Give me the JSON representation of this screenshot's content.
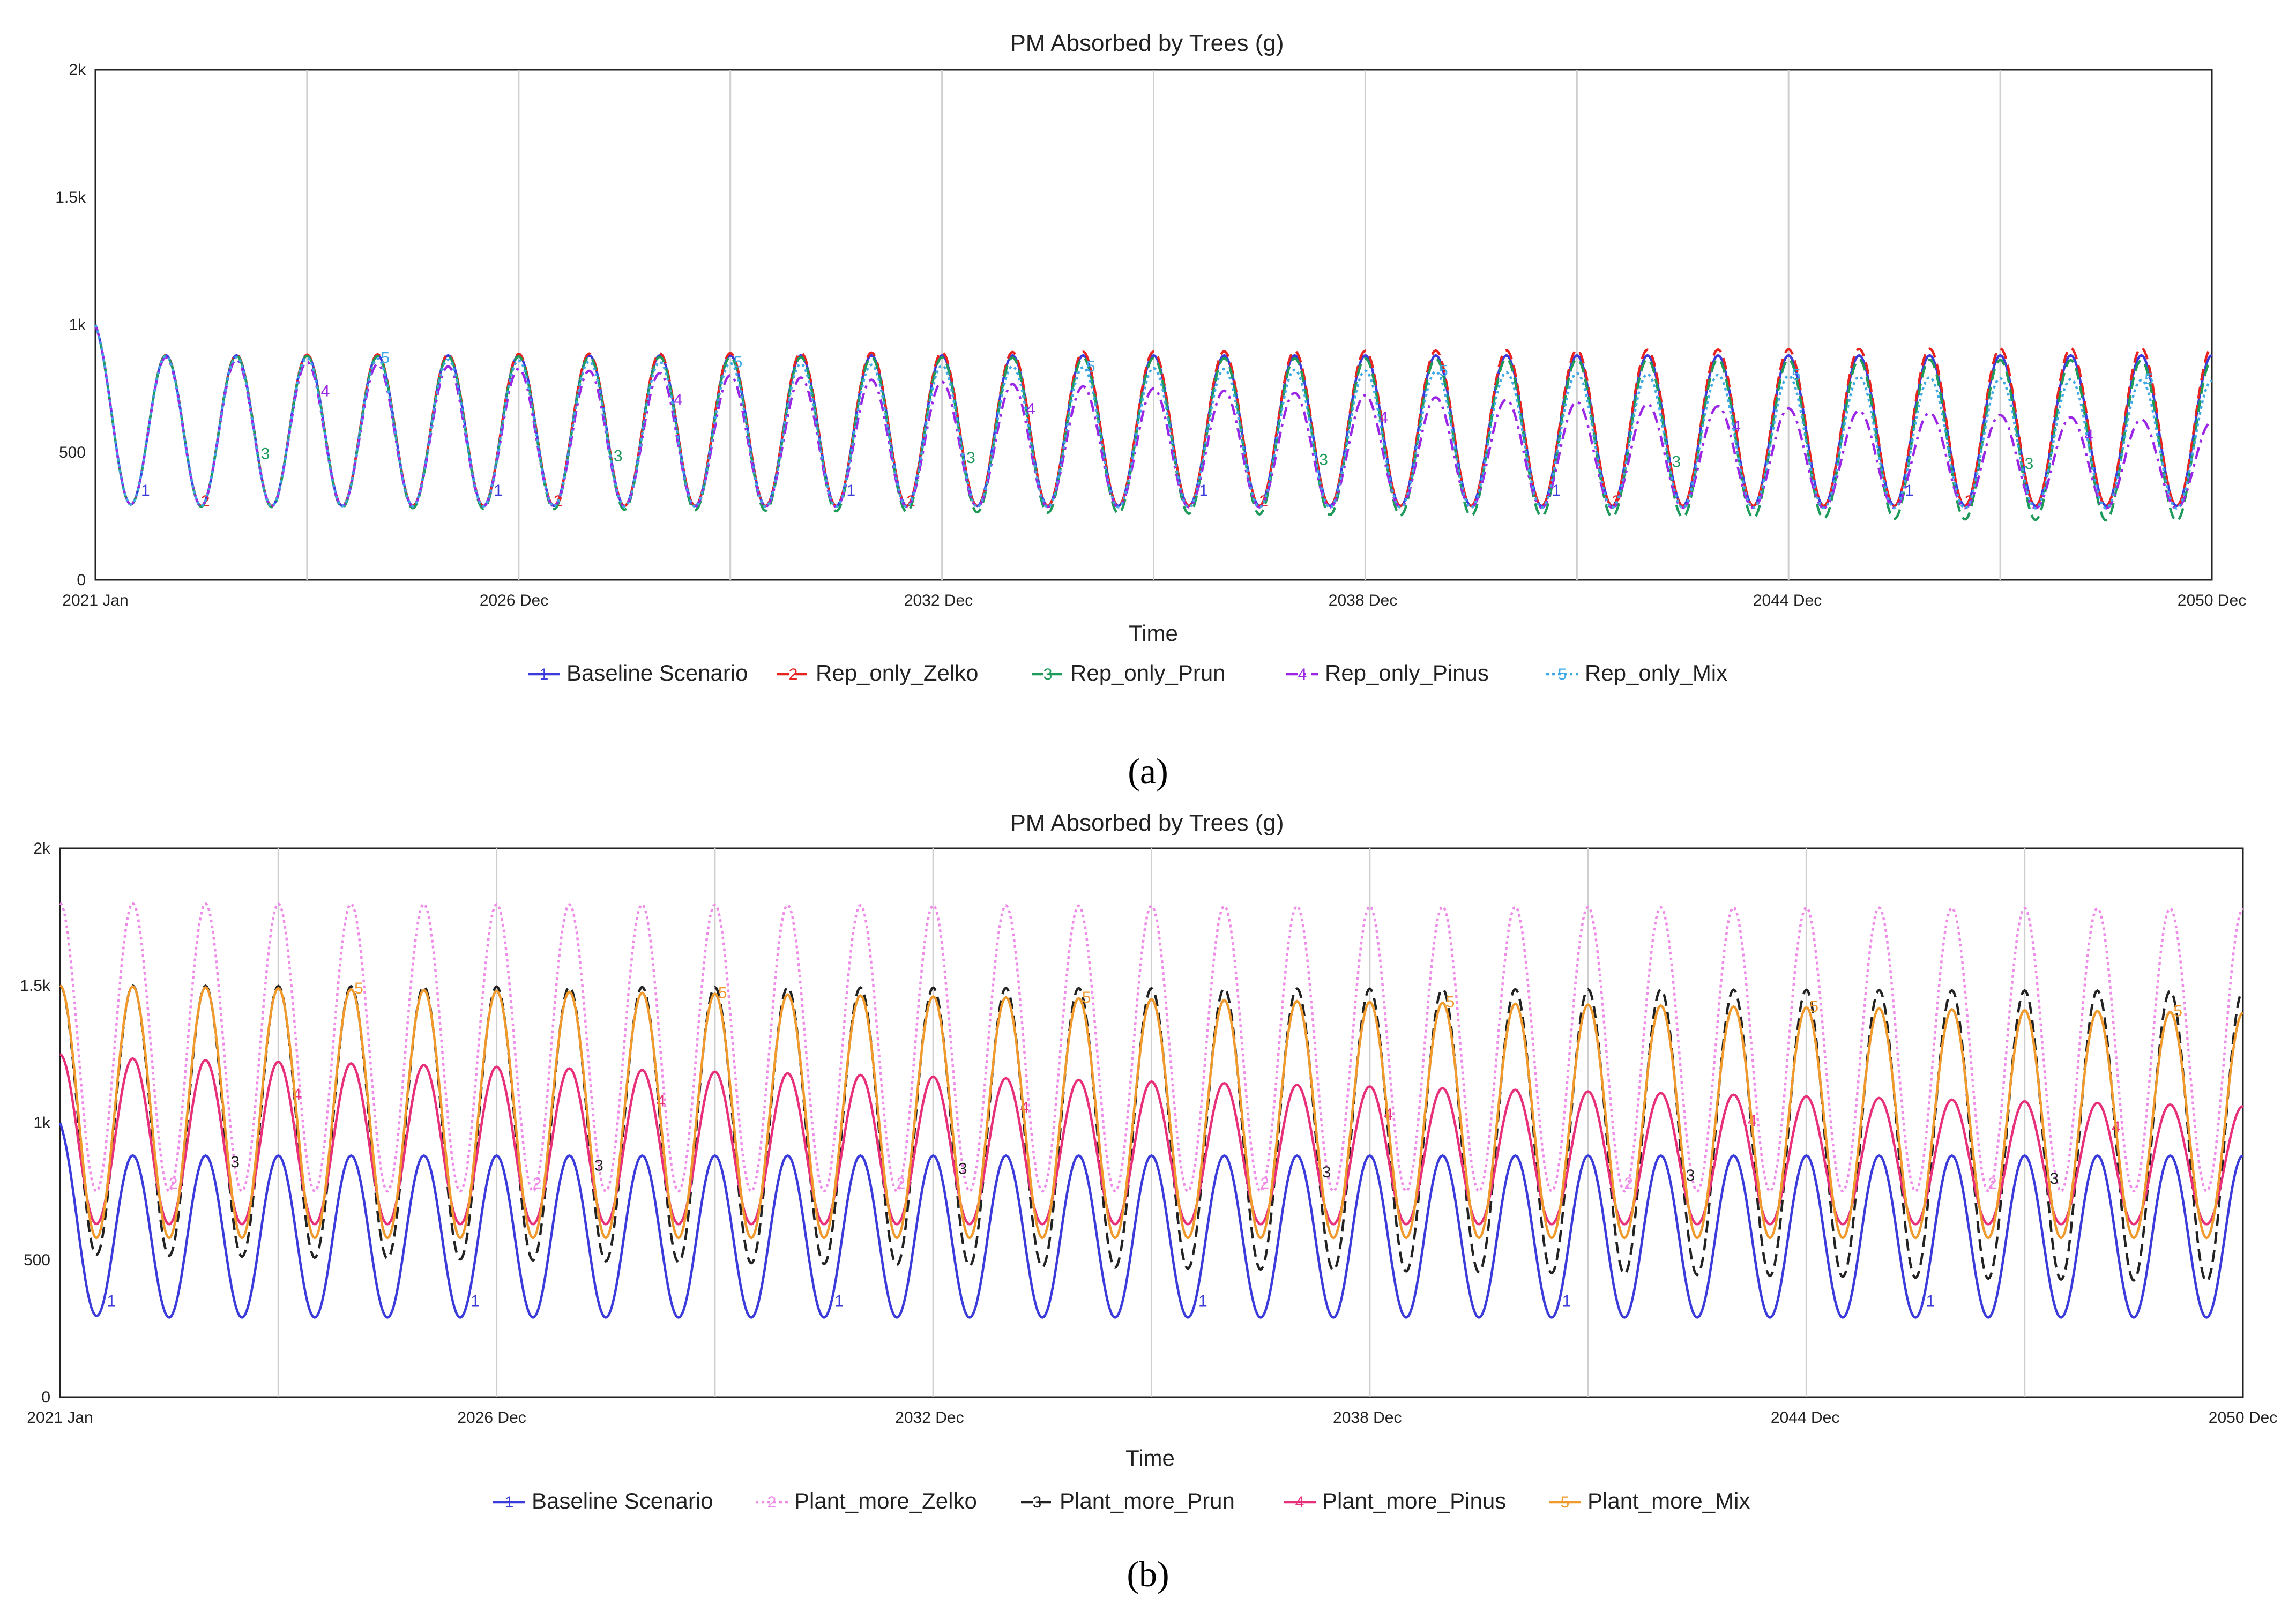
{
  "chart_data": [
    {
      "panel": "a",
      "type": "line",
      "title": "PM Absorbed by Trees (g)",
      "xlabel": "Time",
      "ylabel": "",
      "ylim": [
        0,
        2000
      ],
      "yticks": [
        0,
        500,
        1000,
        1500,
        2000
      ],
      "ytick_labels": [
        "0",
        "500",
        "1k",
        "1.5k",
        "2k"
      ],
      "x_range": [
        2021.0,
        2050.917
      ],
      "xticks": [
        2021.0,
        2026.917,
        2032.917,
        2038.917,
        2044.917,
        2050.917
      ],
      "xtick_labels": [
        "2021 Jan",
        "2026 Dec",
        "2032 Dec",
        "2038 Dec",
        "2044 Dec",
        "2050 Dec"
      ],
      "grid": "vertical",
      "legend_position": "bottom",
      "series": [
        {
          "id": 1,
          "name": "Baseline Scenario",
          "color": "#3b3bdb",
          "dash": "solid",
          "start_value": 1000,
          "peaks": [
            880,
            880
          ],
          "troughs": [
            290,
            290
          ]
        },
        {
          "id": 2,
          "name": "Rep_only_Zelko",
          "color": "#e8231f",
          "dash": "dashed",
          "start_value": 1000,
          "peaks": [
            880,
            910
          ],
          "troughs": [
            290,
            290
          ]
        },
        {
          "id": 3,
          "name": "Rep_only_Prun",
          "color": "#1e9a5a",
          "dash": "dashed",
          "start_value": 1000,
          "peaks": [
            880,
            860
          ],
          "troughs": [
            290,
            230
          ]
        },
        {
          "id": 4,
          "name": "Rep_only_Pinus",
          "color": "#9b26e6",
          "dash": "dashdot",
          "start_value": 1000,
          "peaks": [
            880,
            620
          ],
          "troughs": [
            290,
            280
          ]
        },
        {
          "id": 5,
          "name": "Rep_only_Mix",
          "color": "#3fa9e8",
          "dash": "dotted",
          "start_value": 1000,
          "peaks": [
            880,
            780
          ],
          "troughs": [
            290,
            280
          ]
        }
      ]
    },
    {
      "panel": "b",
      "type": "line",
      "title": "PM Absorbed by Trees (g)",
      "xlabel": "Time",
      "ylabel": "",
      "ylim": [
        0,
        2000
      ],
      "yticks": [
        0,
        500,
        1000,
        1500,
        2000
      ],
      "ytick_labels": [
        "0",
        "500",
        "1k",
        "1.5k",
        "2k"
      ],
      "x_range": [
        2021.0,
        2050.917
      ],
      "xticks": [
        2021.0,
        2026.917,
        2032.917,
        2038.917,
        2044.917,
        2050.917
      ],
      "xtick_labels": [
        "2021 Jan",
        "2026 Dec",
        "2032 Dec",
        "2038 Dec",
        "2044 Dec",
        "2050 Dec"
      ],
      "grid": "vertical",
      "legend_position": "bottom",
      "series": [
        {
          "id": 1,
          "name": "Baseline Scenario",
          "color": "#3b3bdb",
          "dash": "solid",
          "start_value": 1000,
          "peaks": [
            880,
            880
          ],
          "troughs": [
            290,
            290
          ]
        },
        {
          "id": 2,
          "name": "Plant_more_Zelko",
          "color": "#f08ae8",
          "dash": "dotted",
          "start_value": 1800,
          "peaks": [
            1800,
            1780
          ],
          "troughs": [
            750,
            750
          ]
        },
        {
          "id": 3,
          "name": "Plant_more_Prun",
          "color": "#222222",
          "dash": "dashed",
          "start_value": 1500,
          "peaks": [
            1500,
            1480
          ],
          "troughs": [
            520,
            420
          ]
        },
        {
          "id": 4,
          "name": "Plant_more_Pinus",
          "color": "#e8307a",
          "dash": "solid",
          "start_value": 1250,
          "peaks": [
            1240,
            1060
          ],
          "troughs": [
            630,
            630
          ]
        },
        {
          "id": 5,
          "name": "Plant_more_Mix",
          "color": "#f09a2e",
          "dash": "solid",
          "start_value": 1500,
          "peaks": [
            1500,
            1400
          ],
          "troughs": [
            580,
            580
          ]
        }
      ]
    }
  ],
  "panel_labels": [
    "(a)",
    "(b)"
  ]
}
